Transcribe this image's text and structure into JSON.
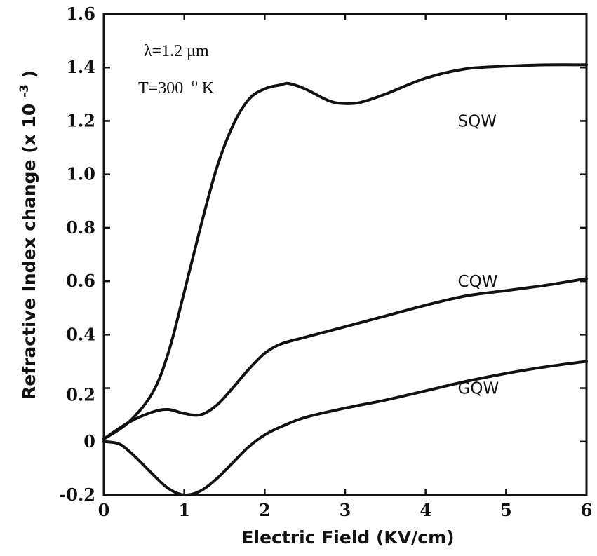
{
  "chart_data": {
    "type": "line",
    "xlabel": "Electric Field (KV/cm)",
    "ylabel": "Refractive Index change (x 10",
    "ylabel_exponent": "-3",
    "ylabel_close": ")",
    "xlim": [
      0,
      6
    ],
    "ylim": [
      -0.2,
      1.6
    ],
    "x_ticks": [
      "0",
      "1",
      "2",
      "3",
      "4",
      "5",
      "6"
    ],
    "y_ticks": [
      {
        "value": -0.2,
        "label": "-0.2"
      },
      {
        "value": 0,
        "label": "0"
      },
      {
        "value": 0.2,
        "label": "0.2"
      },
      {
        "value": 0.4,
        "label": "0.4"
      },
      {
        "value": 0.6,
        "label": "0.6"
      },
      {
        "value": 0.8,
        "label": "0.8"
      },
      {
        "value": 1.0,
        "label": "1.0"
      },
      {
        "value": 1.2,
        "label": "1.2"
      },
      {
        "value": 1.4,
        "label": "1.4"
      },
      {
        "value": 1.6,
        "label": "1.6"
      }
    ],
    "grid": false,
    "annotations": {
      "wavelength": "λ=1.2 μm",
      "temperature": "T=300",
      "temperature_sup": "o",
      "temperature_unit": "K"
    },
    "series": [
      {
        "name": "SQW",
        "x": [
          0,
          0.3,
          0.6,
          0.8,
          1.0,
          1.2,
          1.4,
          1.6,
          1.8,
          2.0,
          2.2,
          2.3,
          2.5,
          2.8,
          3.0,
          3.2,
          3.5,
          4.0,
          4.5,
          5.0,
          5.5,
          6.0
        ],
        "y": [
          0.01,
          0.07,
          0.18,
          0.33,
          0.56,
          0.8,
          1.02,
          1.18,
          1.28,
          1.32,
          1.335,
          1.34,
          1.32,
          1.275,
          1.265,
          1.27,
          1.3,
          1.36,
          1.395,
          1.405,
          1.41,
          1.41
        ]
      },
      {
        "name": "CQW",
        "x": [
          0,
          0.3,
          0.6,
          0.8,
          1.0,
          1.2,
          1.4,
          1.6,
          1.8,
          2.0,
          2.2,
          2.5,
          3.0,
          3.5,
          4.0,
          4.5,
          5.0,
          5.5,
          6.0
        ],
        "y": [
          0.01,
          0.07,
          0.11,
          0.12,
          0.105,
          0.1,
          0.135,
          0.2,
          0.27,
          0.33,
          0.365,
          0.39,
          0.43,
          0.47,
          0.51,
          0.545,
          0.565,
          0.585,
          0.61
        ]
      },
      {
        "name": "GQW",
        "x": [
          0,
          0.2,
          0.4,
          0.6,
          0.8,
          1.0,
          1.2,
          1.4,
          1.6,
          1.8,
          2.0,
          2.2,
          2.5,
          3.0,
          3.5,
          4.0,
          4.5,
          5.0,
          5.5,
          6.0
        ],
        "y": [
          0.0,
          -0.01,
          -0.06,
          -0.12,
          -0.175,
          -0.2,
          -0.185,
          -0.14,
          -0.08,
          -0.02,
          0.025,
          0.055,
          0.09,
          0.125,
          0.155,
          0.19,
          0.225,
          0.255,
          0.28,
          0.3
        ]
      }
    ]
  }
}
